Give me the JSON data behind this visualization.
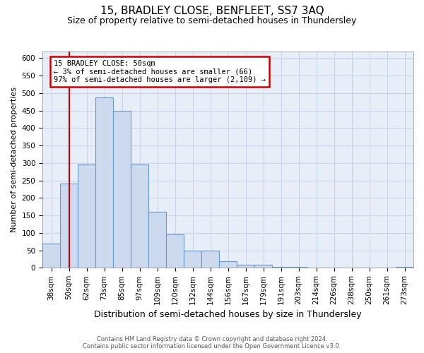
{
  "title": "15, BRADLEY CLOSE, BENFLEET, SS7 3AQ",
  "subtitle": "Size of property relative to semi-detached houses in Thundersley",
  "xlabel": "Distribution of semi-detached houses by size in Thundersley",
  "ylabel": "Number of semi-detached properties",
  "footer_line1": "Contains HM Land Registry data © Crown copyright and database right 2024.",
  "footer_line2": "Contains public sector information licensed under the Open Government Licence v3.0.",
  "categories": [
    "38sqm",
    "50sqm",
    "62sqm",
    "73sqm",
    "85sqm",
    "97sqm",
    "109sqm",
    "120sqm",
    "132sqm",
    "144sqm",
    "156sqm",
    "167sqm",
    "179sqm",
    "191sqm",
    "203sqm",
    "214sqm",
    "226sqm",
    "238sqm",
    "250sqm",
    "261sqm",
    "273sqm"
  ],
  "values": [
    70,
    242,
    296,
    487,
    449,
    296,
    160,
    95,
    50,
    50,
    18,
    8,
    8,
    2,
    2,
    0,
    0,
    0,
    0,
    0,
    2
  ],
  "bar_color": "#ccd9ee",
  "bar_edge_color": "#6699cc",
  "bar_linewidth": 0.8,
  "annotation_box_text": "15 BRADLEY CLOSE: 50sqm\n← 3% of semi-detached houses are smaller (66)\n97% of semi-detached houses are larger (2,109) →",
  "vline_x_index": 1,
  "vline_color": "#cc0000",
  "annotation_box_color": "#ffffff",
  "annotation_box_edgecolor": "#cc0000",
  "ylim": [
    0,
    620
  ],
  "yticks": [
    0,
    50,
    100,
    150,
    200,
    250,
    300,
    350,
    400,
    450,
    500,
    550,
    600
  ],
  "grid_color": "#c8d4e8",
  "bg_color": "#e8eef8",
  "title_fontsize": 11,
  "subtitle_fontsize": 9,
  "xlabel_fontsize": 9,
  "ylabel_fontsize": 8,
  "tick_fontsize": 7.5,
  "annotation_fontsize": 7.5,
  "figwidth": 6.0,
  "figheight": 5.0,
  "dpi": 100
}
